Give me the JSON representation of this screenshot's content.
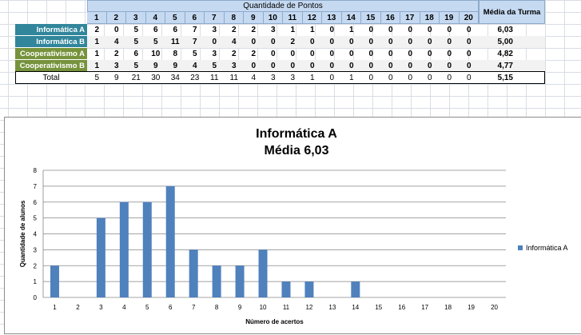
{
  "table": {
    "group_header": "Quantidade de Pontos",
    "columns": [
      "1",
      "2",
      "3",
      "4",
      "5",
      "6",
      "7",
      "8",
      "9",
      "10",
      "11",
      "12",
      "13",
      "14",
      "15",
      "16",
      "17",
      "18",
      "19",
      "20"
    ],
    "avg_header": "Média da Turma",
    "rows": [
      {
        "label": "Informática A",
        "color": "#31869b",
        "values": [
          "2",
          "0",
          "5",
          "6",
          "6",
          "7",
          "3",
          "2",
          "2",
          "3",
          "1",
          "1",
          "0",
          "1",
          "0",
          "0",
          "0",
          "0",
          "0",
          "0"
        ],
        "avg": "6,03"
      },
      {
        "label": "Informática B",
        "color": "#31869b",
        "values": [
          "1",
          "4",
          "5",
          "5",
          "11",
          "7",
          "0",
          "4",
          "0",
          "0",
          "2",
          "0",
          "0",
          "0",
          "0",
          "0",
          "0",
          "0",
          "0",
          "0"
        ],
        "avg": "5,00"
      },
      {
        "label": "Cooperativismo A",
        "color": "#76933c",
        "values": [
          "1",
          "2",
          "6",
          "10",
          "8",
          "5",
          "3",
          "2",
          "2",
          "0",
          "0",
          "0",
          "0",
          "0",
          "0",
          "0",
          "0",
          "0",
          "0",
          "0"
        ],
        "avg": "4,82"
      },
      {
        "label": "Cooperativismo B",
        "color": "#76933c",
        "values": [
          "1",
          "3",
          "5",
          "9",
          "9",
          "4",
          "5",
          "3",
          "0",
          "0",
          "0",
          "0",
          "0",
          "0",
          "0",
          "0",
          "0",
          "0",
          "0",
          "0"
        ],
        "avg": "4,77"
      }
    ],
    "total": {
      "label": "Total",
      "values": [
        "5",
        "9",
        "21",
        "30",
        "34",
        "23",
        "11",
        "11",
        "4",
        "3",
        "3",
        "1",
        "0",
        "1",
        "0",
        "0",
        "0",
        "0",
        "0",
        "0"
      ],
      "avg": "5,15"
    }
  },
  "chart_data": {
    "type": "bar",
    "title": "Informática A",
    "subtitle": "Média 6,03",
    "categories": [
      "1",
      "2",
      "3",
      "4",
      "5",
      "6",
      "7",
      "8",
      "9",
      "10",
      "11",
      "12",
      "13",
      "14",
      "15",
      "16",
      "17",
      "18",
      "19",
      "20"
    ],
    "series": [
      {
        "name": "Informática A",
        "color": "#4f81bd",
        "values": [
          2,
          0,
          5,
          6,
          6,
          7,
          3,
          2,
          2,
          3,
          1,
          1,
          0,
          1,
          0,
          0,
          0,
          0,
          0,
          0
        ]
      }
    ],
    "xlabel": "Número de acertos",
    "ylabel": "Quantidade de alunos",
    "ylim": [
      0,
      8
    ],
    "yticks": [
      "0",
      "1",
      "2",
      "3",
      "4",
      "5",
      "6",
      "7",
      "8"
    ],
    "grid": true,
    "legend": "right"
  }
}
